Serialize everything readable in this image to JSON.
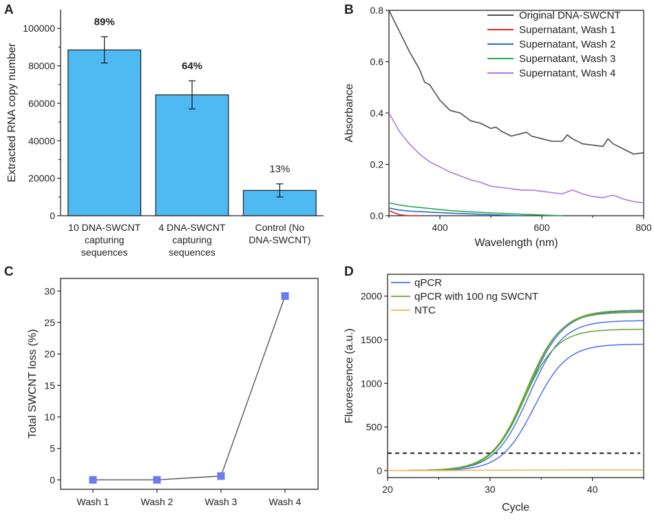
{
  "colors": {
    "bar_fill": "#4fb9f2",
    "bar_stroke": "#1c1c1c",
    "marker_fill": "#6a7df0",
    "marker_line": "#555555"
  },
  "chart_data": [
    {
      "panel": "A",
      "type": "bar",
      "categories": [
        [
          "10 DNA-SWCNT",
          "capturing",
          "sequences"
        ],
        [
          "4 DNA-SWCNT",
          "capturing",
          "sequences"
        ],
        [
          "Control (No",
          "DNA-SWCNT)"
        ]
      ],
      "values": [
        88500,
        64500,
        13500
      ],
      "errors": [
        7000,
        7500,
        3500
      ],
      "bar_labels": [
        "89%",
        "64%",
        "13%"
      ],
      "ylabel": "Extracted RNA copy number",
      "xlabel": "",
      "ylim": [
        0,
        110000
      ],
      "yticks": [
        0,
        20000,
        40000,
        60000,
        80000,
        100000
      ]
    },
    {
      "panel": "B",
      "type": "line",
      "xlabel": "Wavelength (nm)",
      "ylabel": "Absorbance",
      "xlim": [
        300,
        800
      ],
      "ylim": [
        0,
        0.8
      ],
      "xticks": [
        400,
        600,
        800
      ],
      "yticks": [
        0.0,
        0.2,
        0.4,
        0.6,
        0.8
      ],
      "ytick_labels": [
        "0.0",
        "0.2",
        "0.4",
        "0.6",
        "0.8"
      ],
      "legend": "top-right",
      "series": [
        {
          "name": "Original DNA-SWCNT",
          "color": "#4d4d4d",
          "x": [
            300,
            320,
            340,
            360,
            370,
            380,
            400,
            420,
            440,
            460,
            480,
            500,
            510,
            520,
            540,
            560,
            570,
            580,
            600,
            620,
            640,
            650,
            660,
            680,
            700,
            720,
            730,
            740,
            760,
            780,
            800
          ],
          "y": [
            0.8,
            0.72,
            0.64,
            0.57,
            0.52,
            0.51,
            0.45,
            0.41,
            0.4,
            0.37,
            0.36,
            0.34,
            0.345,
            0.33,
            0.31,
            0.32,
            0.325,
            0.31,
            0.3,
            0.29,
            0.29,
            0.315,
            0.3,
            0.28,
            0.275,
            0.27,
            0.3,
            0.28,
            0.26,
            0.24,
            0.245
          ]
        },
        {
          "name": "Supernatant, Wash 1",
          "color": "#e8231f",
          "x": [
            300,
            310,
            320,
            340,
            360
          ],
          "y": [
            0.02,
            0.012,
            0.004,
            0.0,
            0.0
          ]
        },
        {
          "name": "Supernatant, Wash 2",
          "color": "#1f6fd1",
          "x": [
            300,
            320,
            340,
            380,
            420,
            460,
            500,
            560
          ],
          "y": [
            0.03,
            0.022,
            0.018,
            0.014,
            0.01,
            0.007,
            0.004,
            0.0
          ]
        },
        {
          "name": "Supernatant, Wash 3",
          "color": "#27a84f",
          "x": [
            300,
            320,
            340,
            380,
            420,
            460,
            500,
            560,
            600,
            640
          ],
          "y": [
            0.05,
            0.042,
            0.036,
            0.028,
            0.02,
            0.015,
            0.011,
            0.006,
            0.003,
            0.0
          ]
        },
        {
          "name": "Supernatant, Wash 4",
          "color": "#a77be3",
          "x": [
            300,
            320,
            340,
            360,
            380,
            400,
            420,
            440,
            460,
            480,
            500,
            520,
            540,
            560,
            580,
            600,
            620,
            640,
            660,
            680,
            700,
            720,
            740,
            760,
            780,
            800
          ],
          "y": [
            0.4,
            0.33,
            0.28,
            0.24,
            0.21,
            0.19,
            0.17,
            0.155,
            0.14,
            0.13,
            0.115,
            0.11,
            0.105,
            0.1,
            0.1,
            0.095,
            0.09,
            0.085,
            0.1,
            0.085,
            0.075,
            0.07,
            0.08,
            0.065,
            0.055,
            0.05
          ]
        }
      ]
    },
    {
      "panel": "C",
      "type": "scatter",
      "categories": [
        "Wash 1",
        "Wash 2",
        "Wash 3",
        "Wash 4"
      ],
      "values": [
        0.0,
        0.0,
        0.6,
        29.2
      ],
      "ylabel": "Total SWCNT loss (%)",
      "xlabel": "",
      "ylim": [
        -1.5,
        32
      ],
      "yticks": [
        0,
        5,
        10,
        15,
        20,
        25,
        30
      ]
    },
    {
      "panel": "D",
      "type": "line",
      "xlabel": "Cycle",
      "ylabel": "Fluorescence (a.u.)",
      "xlim": [
        20,
        45
      ],
      "ylim": [
        -80,
        2250
      ],
      "xticks": [
        20,
        30,
        40
      ],
      "yticks": [
        0,
        500,
        1000,
        1500,
        2000
      ],
      "threshold": 200,
      "legend": "top-left",
      "legend_entries": [
        {
          "name": "qPCR",
          "color": "#4a6fe8"
        },
        {
          "name": "qPCR with 100 ng SWCNT",
          "color": "#5fa62e"
        },
        {
          "name": "NTC",
          "color": "#f0b244"
        }
      ],
      "curves": [
        {
          "group": "qPCR",
          "color": "#4a6fe8",
          "plateau": 1450,
          "midpoint": 34.3,
          "slope": 1.6
        },
        {
          "group": "qPCR",
          "color": "#4a6fe8",
          "plateau": 1720,
          "midpoint": 33.8,
          "slope": 1.65
        },
        {
          "group": "qPCR",
          "color": "#4a6fe8",
          "plateau": 1830,
          "midpoint": 33.7,
          "slope": 1.7
        },
        {
          "group": "qPCR with 100 ng SWCNT",
          "color": "#5fa62e",
          "plateau": 1620,
          "midpoint": 33.3,
          "slope": 1.6
        },
        {
          "group": "qPCR with 100 ng SWCNT",
          "color": "#5fa62e",
          "plateau": 1815,
          "midpoint": 33.5,
          "slope": 1.65
        },
        {
          "group": "qPCR with 100 ng SWCNT",
          "color": "#5fa62e",
          "plateau": 1840,
          "midpoint": 33.6,
          "slope": 1.7
        },
        {
          "group": "NTC",
          "color": "#f0b244",
          "plateau": 8,
          "midpoint": 30,
          "slope": 3
        }
      ]
    }
  ]
}
